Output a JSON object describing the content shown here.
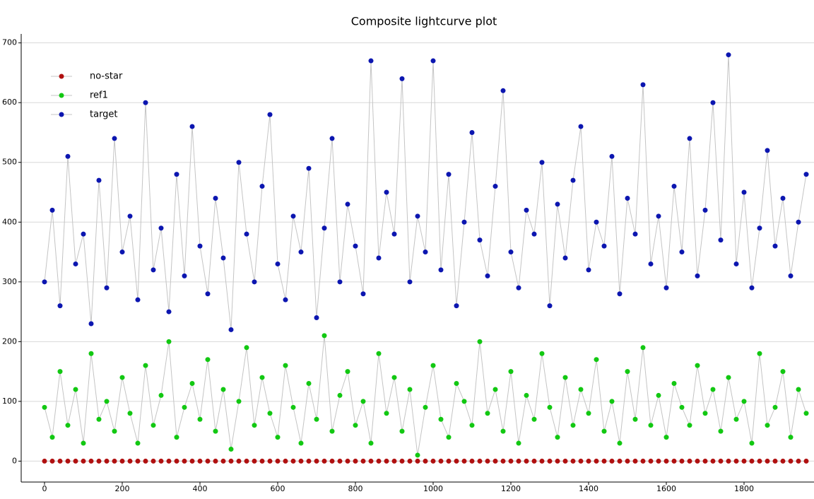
{
  "chart_data": {
    "type": "line",
    "title": "Composite lightcurve plot",
    "x": [
      0,
      20,
      40,
      60,
      80,
      100,
      120,
      140,
      160,
      180,
      200,
      220,
      240,
      260,
      280,
      300,
      320,
      340,
      360,
      380,
      400,
      420,
      440,
      460,
      480,
      500,
      520,
      540,
      560,
      580,
      600,
      620,
      640,
      660,
      680,
      700,
      720,
      740,
      760,
      780,
      800,
      820,
      840,
      860,
      880,
      900,
      920,
      940,
      960,
      980,
      1000,
      1020,
      1040,
      1060,
      1080,
      1100,
      1120,
      1140,
      1160,
      1180,
      1200,
      1220,
      1240,
      1260,
      1280,
      1300,
      1320,
      1340,
      1360,
      1380,
      1400,
      1420,
      1440,
      1460,
      1480,
      1500,
      1520,
      1540,
      1560,
      1580,
      1600,
      1620,
      1640,
      1660,
      1680,
      1700,
      1720,
      1740,
      1760,
      1780,
      1800,
      1820,
      1840,
      1860,
      1880,
      1900,
      1920,
      1940,
      1960
    ],
    "series": [
      {
        "name": "no-star",
        "color": "#b01010",
        "values": [
          0,
          0,
          0,
          0,
          0,
          0,
          0,
          0,
          0,
          0,
          0,
          0,
          0,
          0,
          0,
          0,
          0,
          0,
          0,
          0,
          0,
          0,
          0,
          0,
          0,
          0,
          0,
          0,
          0,
          0,
          0,
          0,
          0,
          0,
          0,
          0,
          0,
          0,
          0,
          0,
          0,
          0,
          0,
          0,
          0,
          0,
          0,
          0,
          0,
          0,
          0,
          0,
          0,
          0,
          0,
          0,
          0,
          0,
          0,
          0,
          0,
          0,
          0,
          0,
          0,
          0,
          0,
          0,
          0,
          0,
          0,
          0,
          0,
          0,
          0,
          0,
          0,
          0,
          0,
          0,
          0,
          0,
          0,
          0,
          0,
          0,
          0,
          0,
          0,
          0,
          0,
          0,
          0,
          0,
          0,
          0,
          0,
          0,
          0
        ]
      },
      {
        "name": "ref1",
        "color": "#12c812",
        "values": [
          90,
          40,
          150,
          60,
          120,
          30,
          180,
          70,
          100,
          50,
          140,
          80,
          30,
          160,
          60,
          110,
          200,
          40,
          90,
          130,
          70,
          170,
          50,
          120,
          20,
          100,
          190,
          60,
          140,
          80,
          40,
          160,
          90,
          30,
          130,
          70,
          210,
          50,
          110,
          150,
          60,
          100,
          30,
          180,
          80,
          140,
          50,
          120,
          10,
          90,
          160,
          70,
          40,
          130,
          100,
          60,
          200,
          80,
          120,
          50,
          150,
          30,
          110,
          70,
          180,
          90,
          40,
          140,
          60,
          120,
          80,
          170,
          50,
          100,
          30,
          150,
          70,
          190,
          60,
          110,
          40,
          130,
          90,
          60,
          160,
          80,
          120,
          50,
          140,
          70,
          100,
          30,
          180,
          60,
          90,
          150,
          40,
          120,
          80
        ]
      },
      {
        "name": "target",
        "color": "#0c16b0",
        "values": [
          300,
          420,
          260,
          510,
          330,
          380,
          230,
          470,
          290,
          540,
          350,
          410,
          270,
          600,
          320,
          390,
          250,
          480,
          310,
          560,
          360,
          280,
          440,
          340,
          220,
          500,
          380,
          300,
          460,
          580,
          330,
          270,
          410,
          350,
          490,
          240,
          390,
          540,
          300,
          430,
          360,
          280,
          670,
          340,
          450,
          380,
          640,
          300,
          410,
          350,
          670,
          320,
          480,
          260,
          400,
          550,
          370,
          310,
          460,
          620,
          350,
          290,
          420,
          380,
          500,
          260,
          430,
          340,
          470,
          560,
          320,
          400,
          360,
          510,
          280,
          440,
          380,
          630,
          330,
          410,
          290,
          460,
          350,
          540,
          310,
          420,
          600,
          370,
          680,
          330,
          450,
          290,
          390,
          520,
          360,
          440,
          310,
          400,
          480
        ]
      }
    ],
    "line_color": "#c4c4c4",
    "xlim": [
      -60,
      1980
    ],
    "xticks": [
      0,
      200,
      400,
      600,
      800,
      1000,
      1200,
      1400,
      1600,
      1800
    ],
    "ylim": [
      -35,
      715
    ],
    "yticks": [
      0,
      100,
      200,
      300,
      400,
      500,
      600,
      700
    ],
    "grid": true,
    "legend": "upper left"
  }
}
